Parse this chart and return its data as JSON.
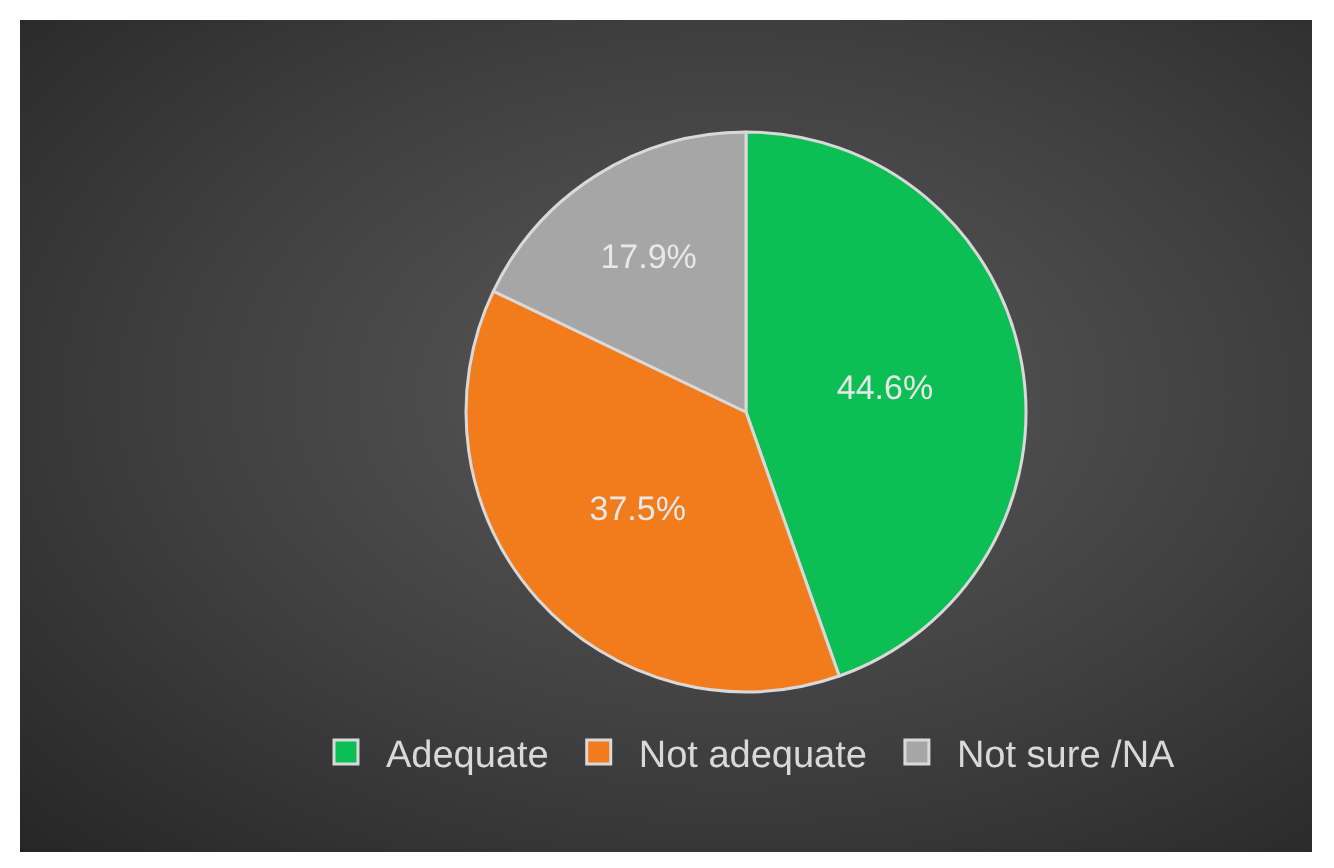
{
  "chart_data": {
    "type": "pie",
    "categories": [
      "Adequate",
      "Not adequate",
      "Not sure /NA"
    ],
    "values": [
      44.6,
      37.5,
      17.9
    ],
    "value_labels": [
      "44.6%",
      "37.5%",
      "17.9%"
    ],
    "colors": [
      "#0cbf55",
      "#f27b1c",
      "#a6a6a6"
    ],
    "legend": "bottom"
  }
}
